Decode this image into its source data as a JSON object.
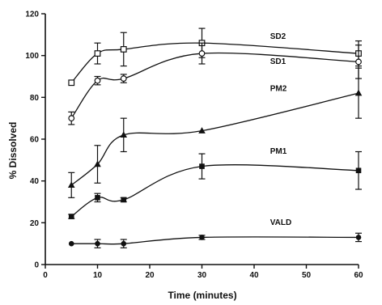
{
  "chart_data": {
    "type": "line",
    "title": "",
    "xlabel": "Time (minutes)",
    "ylabel": "% Dissolved",
    "xlim": [
      0,
      60
    ],
    "ylim": [
      0,
      120
    ],
    "xticks": [
      "0",
      "10",
      "20",
      "30",
      "40",
      "50",
      "60"
    ],
    "yticks": [
      "0",
      "20",
      "40",
      "60",
      "80",
      "100",
      "120"
    ],
    "grid": false,
    "legend": "inline labels",
    "x": [
      5,
      10,
      15,
      30,
      60
    ],
    "series": [
      {
        "name": "SD2",
        "values": [
          87,
          101,
          103,
          106,
          101
        ],
        "errors": [
          0,
          5,
          8,
          7,
          6
        ],
        "marker": "open-square",
        "label_at": [
          35,
          108
        ]
      },
      {
        "name": "SD1",
        "values": [
          70,
          88,
          89,
          101,
          97
        ],
        "errors": [
          3,
          2,
          2,
          5,
          8
        ],
        "marker": "open-circle",
        "label_at": [
          35,
          96
        ]
      },
      {
        "name": "PM2",
        "values": [
          38,
          48,
          62,
          64,
          82
        ],
        "errors": [
          6,
          9,
          8,
          0,
          12
        ],
        "marker": "filled-triangle",
        "label_at": [
          35,
          83
        ]
      },
      {
        "name": "PM1",
        "values": [
          23,
          32,
          31,
          47,
          45
        ],
        "errors": [
          1,
          2,
          1,
          6,
          9
        ],
        "marker": "filled-square",
        "label_at": [
          35,
          53
        ]
      },
      {
        "name": "VALD",
        "values": [
          10,
          10,
          10,
          13,
          13
        ],
        "errors": [
          0,
          2,
          2,
          1,
          2
        ],
        "marker": "filled-circle",
        "label_at": [
          35,
          19
        ]
      }
    ]
  }
}
